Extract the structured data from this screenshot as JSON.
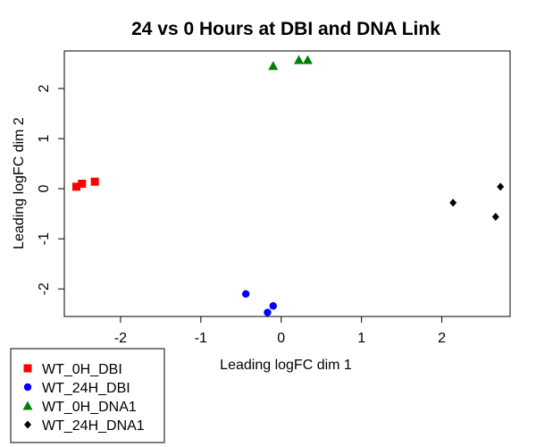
{
  "chart_data": {
    "type": "scatter",
    "title": "24 vs 0 Hours at DBI and DNA Link",
    "xlabel": "Leading logFC dim 1",
    "ylabel": "Leading logFC dim 2",
    "xlim": [
      -2.7,
      2.85
    ],
    "ylim": [
      -2.55,
      2.75
    ],
    "x_ticks": [
      -2,
      -1,
      0,
      1,
      2
    ],
    "y_ticks": [
      -2,
      -1,
      0,
      1,
      2
    ],
    "grid": false,
    "legend_position": "bottom-left-outside",
    "series": [
      {
        "name": "WT_0H_DBI",
        "color": "#ff0000",
        "marker": "square",
        "points": [
          {
            "x": -2.55,
            "y": 0.04
          },
          {
            "x": -2.48,
            "y": 0.1
          },
          {
            "x": -2.32,
            "y": 0.14
          }
        ]
      },
      {
        "name": "WT_24H_DBI",
        "color": "#0000ff",
        "marker": "circle",
        "points": [
          {
            "x": -0.44,
            "y": -2.1
          },
          {
            "x": -0.17,
            "y": -2.47
          },
          {
            "x": -0.1,
            "y": -2.34
          }
        ]
      },
      {
        "name": "WT_0H_DNA1",
        "color": "#008000",
        "marker": "triangle",
        "points": [
          {
            "x": -0.1,
            "y": 2.45
          },
          {
            "x": 0.22,
            "y": 2.57
          },
          {
            "x": 0.33,
            "y": 2.57
          }
        ]
      },
      {
        "name": "WT_24H_DNA1",
        "color": "#000000",
        "marker": "diamond",
        "points": [
          {
            "x": 2.14,
            "y": -0.28
          },
          {
            "x": 2.67,
            "y": -0.56
          },
          {
            "x": 2.73,
            "y": 0.04
          }
        ]
      }
    ]
  }
}
